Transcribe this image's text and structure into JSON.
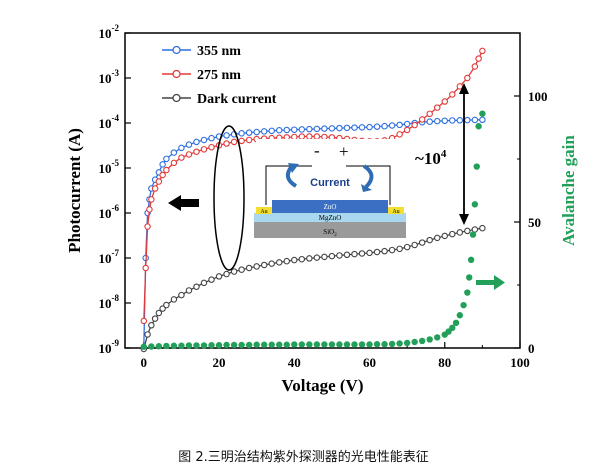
{
  "chart_data": {
    "type": "scatter",
    "xlabel": "Voltage (V)",
    "ylabel_left": "Photocurrent (A)",
    "ylabel_right": "Avalanche gain",
    "xlim": [
      -5,
      100
    ],
    "ylim_left": [
      1e-09,
      0.01
    ],
    "yscale_left": "log",
    "ylim_right": [
      0,
      125
    ],
    "xticks": [
      "0",
      "20",
      "40",
      "60",
      "80",
      "100"
    ],
    "yticks_left": [
      {
        "base": "10",
        "exp": "-9",
        "value": 1e-09
      },
      {
        "base": "10",
        "exp": "-8",
        "value": 1e-08
      },
      {
        "base": "10",
        "exp": "-7",
        "value": 1e-07
      },
      {
        "base": "10",
        "exp": "-6",
        "value": 1e-06
      },
      {
        "base": "10",
        "exp": "-5",
        "value": 1e-05
      },
      {
        "base": "10",
        "exp": "-4",
        "value": 0.0001
      },
      {
        "base": "10",
        "exp": "-3",
        "value": 0.001
      },
      {
        "base": "10",
        "exp": "-2",
        "value": 0.01
      }
    ],
    "yticks_right": [
      "0",
      "50",
      "100"
    ],
    "legend_position": "top-left",
    "series": [
      {
        "name": "355 nm",
        "axis": "left",
        "color": "#2f6fe0",
        "marker": "open-circle",
        "points": [
          [
            0,
            1e-09
          ],
          [
            0.5,
            1e-07
          ],
          [
            1,
            1e-06
          ],
          [
            1.5,
            2e-06
          ],
          [
            2,
            3.5e-06
          ],
          [
            3,
            5.5e-06
          ],
          [
            4,
            8e-06
          ],
          [
            5,
            1.2e-05
          ],
          [
            6,
            1.6e-05
          ],
          [
            8,
            2.2e-05
          ],
          [
            10,
            2.8e-05
          ],
          [
            12,
            3.3e-05
          ],
          [
            14,
            3.8e-05
          ],
          [
            16,
            4.2e-05
          ],
          [
            18,
            4.6e-05
          ],
          [
            20,
            5e-05
          ],
          [
            22,
            5.3e-05
          ],
          [
            24,
            5.6e-05
          ],
          [
            26,
            5.9e-05
          ],
          [
            28,
            6.1e-05
          ],
          [
            30,
            6.3e-05
          ],
          [
            32,
            6.5e-05
          ],
          [
            34,
            6.7e-05
          ],
          [
            36,
            6.9e-05
          ],
          [
            38,
            7e-05
          ],
          [
            40,
            7.1e-05
          ],
          [
            42,
            7.2e-05
          ],
          [
            44,
            7.3e-05
          ],
          [
            46,
            7.4e-05
          ],
          [
            48,
            7.5e-05
          ],
          [
            50,
            7.6e-05
          ],
          [
            52,
            7.7e-05
          ],
          [
            54,
            7.8e-05
          ],
          [
            56,
            7.9e-05
          ],
          [
            58,
            8e-05
          ],
          [
            60,
            8.1e-05
          ],
          [
            62,
            8.3e-05
          ],
          [
            64,
            8.5e-05
          ],
          [
            66,
            8.8e-05
          ],
          [
            68,
            9.1e-05
          ],
          [
            70,
            9.5e-05
          ],
          [
            72,
            0.0001
          ],
          [
            74,
            0.000104
          ],
          [
            76,
            0.000107
          ],
          [
            78,
            0.00011
          ],
          [
            80,
            0.000112
          ],
          [
            82,
            0.000114
          ],
          [
            84,
            0.000115
          ],
          [
            86,
            0.000116
          ],
          [
            88,
            0.000117
          ],
          [
            90,
            0.000118
          ]
        ]
      },
      {
        "name": "275 nm",
        "axis": "left",
        "color": "#e23a3a",
        "marker": "open-circle",
        "points": [
          [
            0,
            4e-09
          ],
          [
            0.5,
            6e-08
          ],
          [
            1,
            5e-07
          ],
          [
            1.5,
            1.2e-06
          ],
          [
            2,
            2e-06
          ],
          [
            3,
            3.5e-06
          ],
          [
            4,
            5e-06
          ],
          [
            5,
            7e-06
          ],
          [
            6,
            9e-06
          ],
          [
            8,
            1.3e-05
          ],
          [
            10,
            1.7e-05
          ],
          [
            12,
            2e-05
          ],
          [
            14,
            2.3e-05
          ],
          [
            16,
            2.6e-05
          ],
          [
            18,
            2.9e-05
          ],
          [
            20,
            3.2e-05
          ],
          [
            22,
            3.5e-05
          ],
          [
            24,
            3.8e-05
          ],
          [
            26,
            4e-05
          ],
          [
            28,
            4.2e-05
          ],
          [
            30,
            4.4e-05
          ],
          [
            32,
            4.5e-05
          ],
          [
            34,
            4.6e-05
          ],
          [
            36,
            4.7e-05
          ],
          [
            38,
            4.8e-05
          ],
          [
            40,
            4.9e-05
          ],
          [
            42,
            5e-05
          ],
          [
            44,
            5e-05
          ],
          [
            46,
            5e-05
          ],
          [
            48,
            4.9e-05
          ],
          [
            50,
            4.8e-05
          ],
          [
            52,
            4.6e-05
          ],
          [
            54,
            4.4e-05
          ],
          [
            56,
            4.2e-05
          ],
          [
            58,
            4e-05
          ],
          [
            60,
            3.9e-05
          ],
          [
            62,
            3.9e-05
          ],
          [
            64,
            4.1e-05
          ],
          [
            66,
            4.6e-05
          ],
          [
            68,
            5.6e-05
          ],
          [
            70,
            7e-05
          ],
          [
            72,
            9e-05
          ],
          [
            74,
            0.00012
          ],
          [
            76,
            0.00016
          ],
          [
            78,
            0.00022
          ],
          [
            80,
            0.0003
          ],
          [
            82,
            0.00043
          ],
          [
            84,
            0.00065
          ],
          [
            86,
            0.001
          ],
          [
            88,
            0.0018
          ],
          [
            89,
            0.0027
          ],
          [
            90,
            0.004
          ]
        ]
      },
      {
        "name": "Dark current",
        "axis": "left",
        "color": "#444444",
        "marker": "open-circle",
        "points": [
          [
            0,
            9.5e-10
          ],
          [
            1,
            2e-09
          ],
          [
            2,
            3.2e-09
          ],
          [
            3,
            4.5e-09
          ],
          [
            4,
            6e-09
          ],
          [
            5,
            7.5e-09
          ],
          [
            6,
            9e-09
          ],
          [
            8,
            1.2e-08
          ],
          [
            10,
            1.5e-08
          ],
          [
            12,
            1.9e-08
          ],
          [
            14,
            2.3e-08
          ],
          [
            16,
            2.8e-08
          ],
          [
            18,
            3.3e-08
          ],
          [
            20,
            3.9e-08
          ],
          [
            22,
            4.4e-08
          ],
          [
            24,
            5e-08
          ],
          [
            26,
            5.5e-08
          ],
          [
            28,
            6e-08
          ],
          [
            30,
            6.5e-08
          ],
          [
            32,
            7e-08
          ],
          [
            34,
            7.5e-08
          ],
          [
            36,
            8e-08
          ],
          [
            38,
            8.5e-08
          ],
          [
            40,
            9e-08
          ],
          [
            42,
            9.4e-08
          ],
          [
            44,
            9.8e-08
          ],
          [
            46,
            1.02e-07
          ],
          [
            48,
            1.06e-07
          ],
          [
            50,
            1.1e-07
          ],
          [
            52,
            1.14e-07
          ],
          [
            54,
            1.18e-07
          ],
          [
            56,
            1.22e-07
          ],
          [
            58,
            1.26e-07
          ],
          [
            60,
            1.3e-07
          ],
          [
            62,
            1.36e-07
          ],
          [
            64,
            1.42e-07
          ],
          [
            66,
            1.5e-07
          ],
          [
            68,
            1.6e-07
          ],
          [
            70,
            1.75e-07
          ],
          [
            72,
            1.95e-07
          ],
          [
            74,
            2.2e-07
          ],
          [
            76,
            2.5e-07
          ],
          [
            78,
            2.8e-07
          ],
          [
            80,
            3.1e-07
          ],
          [
            82,
            3.4e-07
          ],
          [
            84,
            3.7e-07
          ],
          [
            86,
            4e-07
          ],
          [
            88,
            4.3e-07
          ],
          [
            90,
            4.6e-07
          ]
        ]
      },
      {
        "name": "",
        "axis": "right",
        "color": "#22a05a",
        "marker": "filled-circle",
        "points": [
          [
            0,
            0.5
          ],
          [
            2,
            0.6
          ],
          [
            4,
            0.7
          ],
          [
            6,
            0.8
          ],
          [
            8,
            0.9
          ],
          [
            10,
            0.9
          ],
          [
            12,
            1
          ],
          [
            14,
            1
          ],
          [
            16,
            1
          ],
          [
            18,
            1.1
          ],
          [
            20,
            1.1
          ],
          [
            22,
            1.2
          ],
          [
            24,
            1.2
          ],
          [
            26,
            1.2
          ],
          [
            28,
            1.2
          ],
          [
            30,
            1.3
          ],
          [
            32,
            1.3
          ],
          [
            34,
            1.3
          ],
          [
            36,
            1.3
          ],
          [
            38,
            1.3
          ],
          [
            40,
            1.4
          ],
          [
            42,
            1.4
          ],
          [
            44,
            1.4
          ],
          [
            46,
            1.4
          ],
          [
            48,
            1.4
          ],
          [
            50,
            1.4
          ],
          [
            52,
            1.4
          ],
          [
            54,
            1.4
          ],
          [
            56,
            1.4
          ],
          [
            58,
            1.4
          ],
          [
            60,
            1.4
          ],
          [
            62,
            1.5
          ],
          [
            64,
            1.5
          ],
          [
            66,
            1.6
          ],
          [
            68,
            1.8
          ],
          [
            70,
            2
          ],
          [
            72,
            2.4
          ],
          [
            74,
            2.8
          ],
          [
            76,
            3.4
          ],
          [
            78,
            4.2
          ],
          [
            80,
            5.3
          ],
          [
            81,
            6.5
          ],
          [
            82,
            8
          ],
          [
            83,
            10
          ],
          [
            84,
            13
          ],
          [
            85,
            17
          ],
          [
            86,
            22
          ],
          [
            86.5,
            28
          ],
          [
            87,
            35
          ],
          [
            87.5,
            45
          ],
          [
            88,
            57
          ],
          [
            88.5,
            72
          ],
          [
            89,
            88
          ],
          [
            90,
            93
          ]
        ]
      }
    ],
    "annotations": {
      "factor_base": "~10",
      "factor_exp": "4"
    }
  },
  "inset": {
    "minus": "-",
    "plus": "+",
    "current_label": "Current",
    "electrode_left": "Au",
    "electrode_right": "Au",
    "layer_top": "ZnO",
    "layer_middle": "MgZnO",
    "layer_bottom": "SiO",
    "layer_bottom_sub": "2"
  },
  "colors": {
    "blue": "#2f6fe0",
    "red": "#e23a3a",
    "dark": "#444444",
    "green": "#22a05a",
    "axis": "#000000"
  },
  "caption": "图 2.三明治结构紫外探测器的光电性能表征"
}
